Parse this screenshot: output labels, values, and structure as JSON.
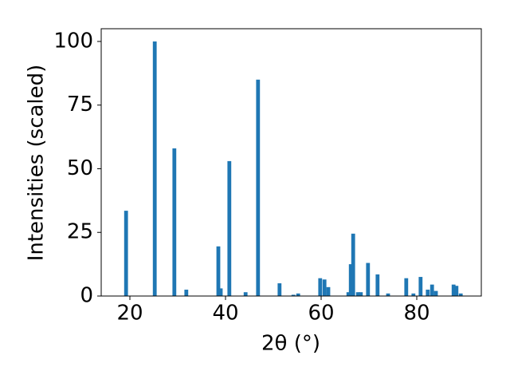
{
  "chart_data": {
    "type": "bar",
    "xlabel": "2θ (°)",
    "ylabel": "Intensities (scaled)",
    "x": [
      19.2,
      25.2,
      29.3,
      31.8,
      38.5,
      39.0,
      40.8,
      44.2,
      46.8,
      51.3,
      54.2,
      55.2,
      59.8,
      60.7,
      61.5,
      65.7,
      66.2,
      66.7,
      67.7,
      68.3,
      69.8,
      71.8,
      74.0,
      77.8,
      79.3,
      80.8,
      82.3,
      83.2,
      84.0,
      87.7,
      88.3,
      89.2
    ],
    "values": [
      33.5,
      100,
      58,
      2.5,
      19.5,
      3,
      53,
      1.5,
      85,
      5,
      0.5,
      1,
      7,
      6.5,
      3.5,
      1.5,
      12.5,
      24.5,
      1.5,
      1.5,
      13,
      8.5,
      1,
      7,
      1,
      7.5,
      2.5,
      4.5,
      2,
      4.5,
      4,
      1
    ],
    "color": "#1f77b4",
    "xlim": [
      14,
      93.5
    ],
    "xticks": [
      20,
      40,
      60,
      80
    ],
    "ylim": [
      0,
      105
    ],
    "yticks": [
      0,
      25,
      50,
      75,
      100
    ],
    "grid": false
  }
}
